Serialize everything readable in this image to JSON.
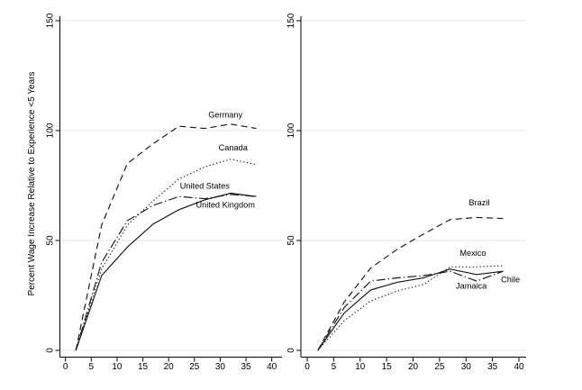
{
  "figure": {
    "y_axis_title": "Percent Wage Increase Relative to Experience <5 Years",
    "colors": {
      "line": "#141414",
      "axis": "#000000",
      "grid": "#e4e4e4",
      "text": "#000000",
      "background": "#ffffff"
    }
  },
  "chart_data": [
    {
      "type": "line",
      "panel": "left",
      "title": "",
      "xlabel": "",
      "ylabel": "Percent Wage Increase Relative to Experience <5 Years",
      "xlim": [
        0,
        40
      ],
      "ylim": [
        0,
        150
      ],
      "x_ticks": [
        0,
        5,
        10,
        15,
        20,
        25,
        30,
        35,
        40
      ],
      "y_ticks": [
        0,
        50,
        100,
        150
      ],
      "grid": true,
      "legend": "inline-labels",
      "x": [
        2,
        7,
        12,
        17,
        22,
        27,
        32,
        37
      ],
      "series": [
        {
          "name": "Germany",
          "style": "dash",
          "values": [
            0,
            57,
            85,
            94,
            102,
            101,
            103,
            101
          ],
          "label_pos": {
            "x": 31,
            "y": 106
          }
        },
        {
          "name": "Canada",
          "style": "dot",
          "values": [
            0,
            37,
            57,
            68,
            78,
            83.5,
            87,
            84.5
          ],
          "label_pos": {
            "x": 32.5,
            "y": 91
          }
        },
        {
          "name": "United States",
          "style": "dashdot",
          "values": [
            0,
            40,
            59,
            66,
            70,
            69,
            71,
            70
          ],
          "label_pos": {
            "x": 27,
            "y": 73.5
          }
        },
        {
          "name": "United Kingdom",
          "style": "solid",
          "values": [
            0,
            34,
            47,
            57.5,
            64,
            68.5,
            71.5,
            70
          ],
          "label_pos": {
            "x": 31,
            "y": 65
          }
        }
      ]
    },
    {
      "type": "line",
      "panel": "right",
      "title": "",
      "xlabel": "",
      "ylabel": "",
      "xlim": [
        0,
        40
      ],
      "ylim": [
        0,
        150
      ],
      "x_ticks": [
        0,
        5,
        10,
        15,
        20,
        25,
        30,
        35,
        40
      ],
      "y_ticks": [
        0,
        50,
        100,
        150
      ],
      "grid": true,
      "legend": "inline-labels",
      "x": [
        2,
        7,
        12,
        17,
        22,
        27,
        32,
        37
      ],
      "series": [
        {
          "name": "Brazil",
          "style": "dash",
          "values": [
            0,
            22,
            37.5,
            46,
            53,
            59.5,
            60.5,
            60
          ],
          "label_pos": {
            "x": 32.5,
            "y": 66
          }
        },
        {
          "name": "Mexico",
          "style": "dot",
          "values": [
            0,
            13.5,
            22.5,
            27,
            30,
            38,
            38,
            38.5
          ],
          "label_pos": {
            "x": 31.3,
            "y": 43
          }
        },
        {
          "name": "Chile",
          "style": "solid",
          "values": [
            0,
            17,
            27.5,
            31,
            33,
            37,
            34.5,
            36
          ],
          "label_pos": {
            "x": 38.4,
            "y": 31
          }
        },
        {
          "name": "Jamaica",
          "style": "dashdot",
          "values": [
            0,
            19.5,
            31.5,
            33,
            34,
            36,
            31.5,
            36
          ],
          "label_pos": {
            "x": 31,
            "y": 28
          }
        }
      ]
    }
  ]
}
